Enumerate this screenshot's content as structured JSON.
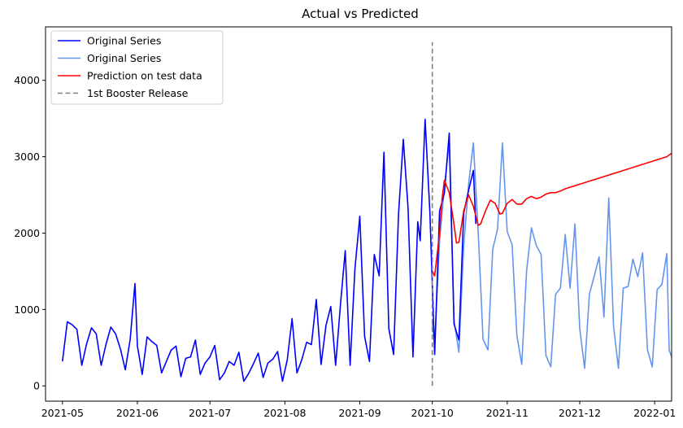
{
  "chart_data": {
    "type": "line",
    "title": "Actual vs Predicted",
    "xlabel": "",
    "ylabel": "",
    "x_range": [
      "2021-04-24",
      "2022-01-08"
    ],
    "ylim": [
      -200,
      4700
    ],
    "x_ticks": [
      {
        "date": "2021-05-01",
        "label": "2021-05"
      },
      {
        "date": "2021-06-01",
        "label": "2021-06"
      },
      {
        "date": "2021-07-01",
        "label": "2021-07"
      },
      {
        "date": "2021-08-01",
        "label": "2021-08"
      },
      {
        "date": "2021-09-01",
        "label": "2021-09"
      },
      {
        "date": "2021-10-01",
        "label": "2021-10"
      },
      {
        "date": "2021-11-01",
        "label": "2021-11"
      },
      {
        "date": "2021-12-01",
        "label": "2021-12"
      },
      {
        "date": "2022-01-01",
        "label": "2022-01"
      }
    ],
    "y_ticks": [
      0,
      1000,
      2000,
      3000,
      4000
    ],
    "grid": false,
    "legend_position": "top-left",
    "series": [
      {
        "name": "Original Series",
        "color": "#0000ff",
        "points": [
          [
            "2021-05-01",
            320
          ],
          [
            "2021-05-03",
            840
          ],
          [
            "2021-05-05",
            800
          ],
          [
            "2021-05-07",
            740
          ],
          [
            "2021-05-09",
            270
          ],
          [
            "2021-05-11",
            550
          ],
          [
            "2021-05-13",
            760
          ],
          [
            "2021-05-15",
            680
          ],
          [
            "2021-05-17",
            270
          ],
          [
            "2021-05-19",
            540
          ],
          [
            "2021-05-21",
            770
          ],
          [
            "2021-05-23",
            680
          ],
          [
            "2021-05-25",
            480
          ],
          [
            "2021-05-27",
            210
          ],
          [
            "2021-05-29",
            610
          ],
          [
            "2021-05-31",
            1340
          ],
          [
            "2021-06-01",
            520
          ],
          [
            "2021-06-03",
            150
          ],
          [
            "2021-06-05",
            640
          ],
          [
            "2021-06-07",
            580
          ],
          [
            "2021-06-09",
            530
          ],
          [
            "2021-06-11",
            170
          ],
          [
            "2021-06-13",
            320
          ],
          [
            "2021-06-15",
            470
          ],
          [
            "2021-06-17",
            520
          ],
          [
            "2021-06-19",
            120
          ],
          [
            "2021-06-21",
            360
          ],
          [
            "2021-06-23",
            380
          ],
          [
            "2021-06-25",
            600
          ],
          [
            "2021-06-27",
            150
          ],
          [
            "2021-06-29",
            300
          ],
          [
            "2021-07-01",
            380
          ],
          [
            "2021-07-03",
            530
          ],
          [
            "2021-07-05",
            80
          ],
          [
            "2021-07-07",
            170
          ],
          [
            "2021-07-09",
            320
          ],
          [
            "2021-07-11",
            270
          ],
          [
            "2021-07-13",
            440
          ],
          [
            "2021-07-15",
            60
          ],
          [
            "2021-07-17",
            160
          ],
          [
            "2021-07-19",
            290
          ],
          [
            "2021-07-21",
            430
          ],
          [
            "2021-07-23",
            110
          ],
          [
            "2021-07-25",
            300
          ],
          [
            "2021-07-27",
            350
          ],
          [
            "2021-07-29",
            450
          ],
          [
            "2021-07-31",
            60
          ],
          [
            "2021-08-02",
            340
          ],
          [
            "2021-08-04",
            880
          ],
          [
            "2021-08-06",
            170
          ],
          [
            "2021-08-08",
            340
          ],
          [
            "2021-08-10",
            570
          ],
          [
            "2021-08-12",
            540
          ],
          [
            "2021-08-14",
            1130
          ],
          [
            "2021-08-16",
            280
          ],
          [
            "2021-08-18",
            790
          ],
          [
            "2021-08-20",
            1040
          ],
          [
            "2021-08-22",
            270
          ],
          [
            "2021-08-24",
            1060
          ],
          [
            "2021-08-26",
            1770
          ],
          [
            "2021-08-28",
            270
          ],
          [
            "2021-08-30",
            1530
          ],
          [
            "2021-09-01",
            2220
          ],
          [
            "2021-09-03",
            650
          ],
          [
            "2021-09-05",
            320
          ],
          [
            "2021-09-07",
            1720
          ],
          [
            "2021-09-09",
            1440
          ],
          [
            "2021-09-11",
            3060
          ],
          [
            "2021-09-13",
            750
          ],
          [
            "2021-09-15",
            410
          ],
          [
            "2021-09-17",
            2240
          ],
          [
            "2021-09-19",
            3230
          ],
          [
            "2021-09-21",
            2320
          ],
          [
            "2021-09-23",
            380
          ],
          [
            "2021-09-25",
            2150
          ],
          [
            "2021-09-26",
            1900
          ],
          [
            "2021-09-28",
            3490
          ],
          [
            "2021-09-30",
            2270
          ],
          [
            "2021-10-02",
            410
          ],
          [
            "2021-10-04",
            2290
          ],
          [
            "2021-10-06",
            2520
          ],
          [
            "2021-10-08",
            3310
          ],
          [
            "2021-10-10",
            810
          ],
          [
            "2021-10-12",
            600
          ],
          [
            "2021-10-14",
            2260
          ],
          [
            "2021-10-16",
            2560
          ],
          [
            "2021-10-18",
            2820
          ],
          [
            "2021-10-19",
            2120
          ]
        ]
      },
      {
        "name": "Original Series",
        "color": "#6495ed",
        "points": [
          [
            "2021-10-01",
            810
          ],
          [
            "2021-10-02",
            560
          ],
          [
            "2021-10-04",
            1900
          ],
          [
            "2021-10-06",
            2600
          ],
          [
            "2021-10-08",
            3190
          ],
          [
            "2021-10-10",
            850
          ],
          [
            "2021-10-12",
            440
          ],
          [
            "2021-10-14",
            1830
          ],
          [
            "2021-10-16",
            2640
          ],
          [
            "2021-10-18",
            3180
          ],
          [
            "2021-10-20",
            2000
          ],
          [
            "2021-10-22",
            610
          ],
          [
            "2021-10-24",
            470
          ],
          [
            "2021-10-26",
            1790
          ],
          [
            "2021-10-28",
            2050
          ],
          [
            "2021-10-30",
            3180
          ],
          [
            "2021-11-01",
            2020
          ],
          [
            "2021-11-03",
            1850
          ],
          [
            "2021-11-05",
            660
          ],
          [
            "2021-11-07",
            280
          ],
          [
            "2021-11-09",
            1500
          ],
          [
            "2021-11-11",
            2070
          ],
          [
            "2021-11-13",
            1840
          ],
          [
            "2021-11-15",
            1720
          ],
          [
            "2021-11-17",
            400
          ],
          [
            "2021-11-19",
            250
          ],
          [
            "2021-11-21",
            1200
          ],
          [
            "2021-11-23",
            1280
          ],
          [
            "2021-11-25",
            1980
          ],
          [
            "2021-11-27",
            1280
          ],
          [
            "2021-11-29",
            2120
          ],
          [
            "2021-12-01",
            750
          ],
          [
            "2021-12-03",
            230
          ],
          [
            "2021-12-05",
            1200
          ],
          [
            "2021-12-07",
            1440
          ],
          [
            "2021-12-09",
            1690
          ],
          [
            "2021-12-11",
            900
          ],
          [
            "2021-12-13",
            2460
          ],
          [
            "2021-12-15",
            780
          ],
          [
            "2021-12-17",
            230
          ],
          [
            "2021-12-19",
            1280
          ],
          [
            "2021-12-21",
            1300
          ],
          [
            "2021-12-23",
            1660
          ],
          [
            "2021-12-25",
            1430
          ],
          [
            "2021-12-27",
            1740
          ],
          [
            "2021-12-29",
            470
          ],
          [
            "2021-12-31",
            250
          ],
          [
            "2022-01-02",
            1260
          ],
          [
            "2022-01-04",
            1330
          ],
          [
            "2022-01-06",
            1730
          ],
          [
            "2022-01-07",
            470
          ],
          [
            "2022-01-08",
            380
          ]
        ]
      },
      {
        "name": "Prediction on test data",
        "color": "#ff0000",
        "points": [
          [
            "2021-10-01",
            1500
          ],
          [
            "2021-10-02",
            1440
          ],
          [
            "2021-10-04",
            2000
          ],
          [
            "2021-10-05",
            2440
          ],
          [
            "2021-10-06",
            2690
          ],
          [
            "2021-10-08",
            2530
          ],
          [
            "2021-10-10",
            2110
          ],
          [
            "2021-10-11",
            1870
          ],
          [
            "2021-10-12",
            1880
          ],
          [
            "2021-10-14",
            2290
          ],
          [
            "2021-10-16",
            2500
          ],
          [
            "2021-10-18",
            2350
          ],
          [
            "2021-10-20",
            2100
          ],
          [
            "2021-10-21",
            2120
          ],
          [
            "2021-10-23",
            2290
          ],
          [
            "2021-10-25",
            2430
          ],
          [
            "2021-10-27",
            2390
          ],
          [
            "2021-10-29",
            2250
          ],
          [
            "2021-10-30",
            2260
          ],
          [
            "2021-11-01",
            2390
          ],
          [
            "2021-11-03",
            2440
          ],
          [
            "2021-11-05",
            2380
          ],
          [
            "2021-11-07",
            2380
          ],
          [
            "2021-11-09",
            2450
          ],
          [
            "2021-11-11",
            2480
          ],
          [
            "2021-11-13",
            2450
          ],
          [
            "2021-11-15",
            2470
          ],
          [
            "2021-11-17",
            2510
          ],
          [
            "2021-11-19",
            2530
          ],
          [
            "2021-11-21",
            2530
          ],
          [
            "2021-11-23",
            2550
          ],
          [
            "2021-11-25",
            2580
          ],
          [
            "2021-11-27",
            2600
          ],
          [
            "2021-11-29",
            2620
          ],
          [
            "2021-12-01",
            2640
          ],
          [
            "2021-12-03",
            2660
          ],
          [
            "2021-12-05",
            2680
          ],
          [
            "2021-12-07",
            2700
          ],
          [
            "2021-12-09",
            2720
          ],
          [
            "2021-12-11",
            2740
          ],
          [
            "2021-12-13",
            2760
          ],
          [
            "2021-12-15",
            2780
          ],
          [
            "2021-12-17",
            2800
          ],
          [
            "2021-12-19",
            2820
          ],
          [
            "2021-12-21",
            2840
          ],
          [
            "2021-12-23",
            2860
          ],
          [
            "2021-12-25",
            2880
          ],
          [
            "2021-12-27",
            2900
          ],
          [
            "2021-12-29",
            2920
          ],
          [
            "2021-12-31",
            2940
          ],
          [
            "2022-01-02",
            2960
          ],
          [
            "2022-01-04",
            2980
          ],
          [
            "2022-01-06",
            3000
          ],
          [
            "2022-01-08",
            3045
          ]
        ]
      }
    ],
    "vline": {
      "name": "1st Booster Release",
      "color": "#808080",
      "date": "2021-10-01",
      "y_from": 0,
      "y_to": 4500
    }
  }
}
